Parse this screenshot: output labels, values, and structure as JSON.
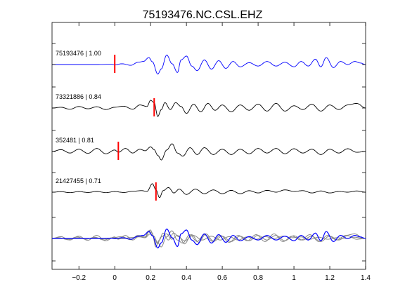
{
  "chart_data": {
    "type": "line",
    "title": "75193476.NC.CSL.EHZ",
    "xlabel": "",
    "ylabel": "",
    "xlim": [
      -0.35,
      1.4
    ],
    "x_ticks": [
      -0.2,
      0,
      0.2,
      0.4,
      0.6,
      0.8,
      1,
      1.2,
      1.4
    ],
    "x_tick_labels": [
      "−0.2",
      "0",
      "0.2",
      "0.4",
      "0.6",
      "0.8",
      "1",
      "1.2",
      "1.4"
    ],
    "grid": false,
    "traces": [
      {
        "label": "75193476 | 1.00",
        "color": "#0000ff",
        "pick_time": 0.0,
        "x": [
          -0.35,
          -0.1,
          -0.02,
          0.0,
          0.04,
          0.09,
          0.13,
          0.16,
          0.19,
          0.21,
          0.24,
          0.26,
          0.29,
          0.32,
          0.35,
          0.37,
          0.4,
          0.43,
          0.46,
          0.5,
          0.54,
          0.58,
          0.62,
          0.66,
          0.7,
          0.75,
          0.8,
          0.85,
          0.9,
          0.95,
          1.0,
          1.04,
          1.08,
          1.12,
          1.15,
          1.18,
          1.22,
          1.26,
          1.3,
          1.34,
          1.37,
          1.4
        ],
        "y": [
          0,
          0,
          0.02,
          -0.02,
          0.05,
          -0.05,
          0.15,
          0.2,
          0.45,
          0.18,
          -0.62,
          -0.28,
          0.62,
          0.05,
          -0.52,
          0.3,
          0.55,
          -0.1,
          -0.4,
          0.3,
          -0.3,
          0.25,
          -0.25,
          0.2,
          -0.15,
          0.12,
          -0.1,
          0.2,
          -0.1,
          0.15,
          -0.15,
          0.2,
          -0.1,
          0.35,
          -0.15,
          0.45,
          -0.2,
          0.2,
          0.0,
          0.2,
          0.1,
          0.0
        ]
      },
      {
        "label": "73321886 | 0.84",
        "color": "#000000",
        "pick_time": 0.22,
        "x": [
          -0.35,
          -0.3,
          -0.25,
          -0.2,
          -0.15,
          -0.1,
          -0.05,
          0.0,
          0.05,
          0.1,
          0.14,
          0.18,
          0.2,
          0.22,
          0.24,
          0.26,
          0.28,
          0.31,
          0.34,
          0.37,
          0.4,
          0.44,
          0.48,
          0.52,
          0.56,
          0.6,
          0.65,
          0.7,
          0.75,
          0.8,
          0.85,
          0.9,
          0.95,
          1.0,
          1.05,
          1.1,
          1.15,
          1.2,
          1.25,
          1.3,
          1.35,
          1.4
        ],
        "y": [
          0,
          0.05,
          -0.08,
          0.1,
          -0.05,
          0.08,
          -0.1,
          0.05,
          0.12,
          -0.08,
          0.2,
          0.1,
          0.5,
          0.35,
          -0.55,
          -0.1,
          0.35,
          -0.1,
          0.35,
          0.1,
          -0.35,
          0.25,
          -0.25,
          0.3,
          -0.15,
          0.2,
          -0.25,
          0.2,
          -0.15,
          0.25,
          -0.2,
          0.3,
          -0.2,
          0.15,
          -0.1,
          0.25,
          -0.2,
          0.2,
          -0.1,
          0.2,
          0.3,
          0.0
        ]
      },
      {
        "label": "352481 | 0.81",
        "color": "#000000",
        "pick_time": 0.02,
        "x": [
          -0.35,
          -0.3,
          -0.25,
          -0.2,
          -0.15,
          -0.1,
          -0.05,
          0.0,
          0.02,
          0.06,
          0.1,
          0.14,
          0.17,
          0.2,
          0.22,
          0.24,
          0.26,
          0.29,
          0.32,
          0.35,
          0.38,
          0.42,
          0.46,
          0.5,
          0.55,
          0.6,
          0.65,
          0.7,
          0.75,
          0.8,
          0.85,
          0.9,
          0.95,
          1.0,
          1.05,
          1.1,
          1.15,
          1.2,
          1.25,
          1.3,
          1.35,
          1.4
        ],
        "y": [
          0,
          0.12,
          -0.1,
          0.15,
          -0.12,
          0.2,
          -0.15,
          0.1,
          -0.05,
          0.2,
          -0.1,
          0.15,
          0.05,
          0.3,
          0.12,
          -0.25,
          -0.55,
          0.1,
          0.5,
          -0.1,
          -0.3,
          0.25,
          -0.2,
          0.25,
          -0.2,
          0.15,
          -0.2,
          0.15,
          -0.15,
          0.2,
          -0.1,
          0.2,
          -0.15,
          0.18,
          -0.1,
          0.15,
          -0.2,
          0.15,
          -0.1,
          0.18,
          -0.05,
          0.0
        ]
      },
      {
        "label": "21427455 | 0.71",
        "color": "#000000",
        "pick_time": 0.23,
        "x": [
          -0.35,
          -0.3,
          -0.25,
          -0.2,
          -0.15,
          -0.1,
          -0.05,
          0.0,
          0.05,
          0.1,
          0.15,
          0.18,
          0.21,
          0.23,
          0.25,
          0.27,
          0.3,
          0.33,
          0.36,
          0.4,
          0.45,
          0.5,
          0.55,
          0.6,
          0.65,
          0.7,
          0.75,
          0.8,
          0.85,
          0.9,
          0.95,
          1.0,
          1.05,
          1.1,
          1.15,
          1.2,
          1.25,
          1.3,
          1.35,
          1.4
        ],
        "y": [
          0,
          0.03,
          -0.03,
          0.04,
          -0.02,
          0.05,
          -0.03,
          0.04,
          -0.02,
          0.06,
          0.1,
          0.05,
          0.55,
          0.15,
          -0.35,
          0.1,
          0.3,
          -0.05,
          0.2,
          -0.15,
          0.2,
          -0.1,
          0.15,
          -0.1,
          0.12,
          -0.1,
          0.1,
          -0.05,
          0.12,
          0.0,
          0.15,
          0.05,
          0.1,
          -0.05,
          0.08,
          -0.05,
          0.05,
          0.0,
          0.08,
          0.0
        ]
      }
    ]
  }
}
